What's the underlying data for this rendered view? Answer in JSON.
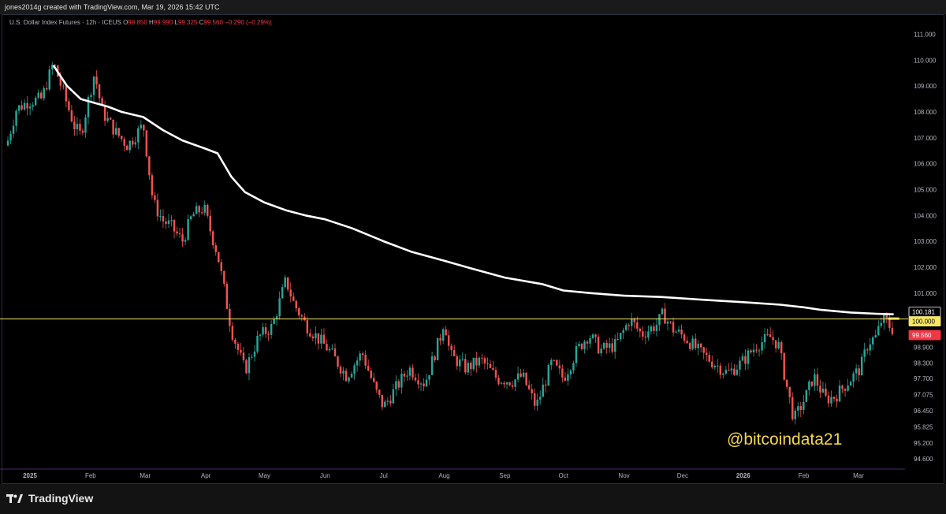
{
  "header": {
    "attribution": "jones2014g created with TradingView.com, Mar 19, 2026 15:42 UTC"
  },
  "legend": {
    "symbol": "U.S. Dollar Index Futures · 12h · ICEUS",
    "open_label": "O",
    "open": "99.850",
    "high_label": "H",
    "high": "99.990",
    "low_label": "L",
    "low": "99.325",
    "close_label": "C",
    "close": "99.560",
    "change": "−0.290 (−0.29%)"
  },
  "watermark": "@bitcoindata21",
  "footer": {
    "brand": "TradingView"
  },
  "colors": {
    "up": "#26a69a",
    "down": "#ef5350",
    "ma": "#ffffff",
    "level": "#f5e663",
    "badge_red": "#f23645",
    "background": "#000000"
  },
  "chart_data": {
    "type": "candlestick",
    "y_axis_ticks": [
      "111.000",
      "110.000",
      "109.000",
      "108.000",
      "107.000",
      "106.000",
      "105.000",
      "104.000",
      "103.000",
      "102.000",
      "101.000",
      "98.900",
      "98.300",
      "97.700",
      "97.075",
      "96.450",
      "95.825",
      "95.200",
      "94.600"
    ],
    "ylim": [
      94.2,
      111.35
    ],
    "x_axis_ticks": [
      "2025",
      "Feb",
      "Mar",
      "Apr",
      "May",
      "Jun",
      "Jul",
      "Aug",
      "Sep",
      "Oct",
      "Nov",
      "Dec",
      "2026",
      "Feb",
      "Mar"
    ],
    "price_labels": [
      {
        "label": "100.181",
        "value": 100.181,
        "kind": "ma"
      },
      {
        "label": "100.000",
        "value": 100.0,
        "kind": "level"
      },
      {
        "label": "99.560",
        "value": 99.56,
        "kind": "last"
      }
    ],
    "horizontal_level": 100.0,
    "price_path": [
      [
        "2024-12-20",
        106.7
      ],
      [
        "2024-12-25",
        108.1
      ],
      [
        "2024-12-31",
        108.4
      ],
      [
        "2025-01-07",
        108.5
      ],
      [
        "2025-01-13",
        109.9
      ],
      [
        "2025-01-20",
        108.3
      ],
      [
        "2025-01-24",
        107.4
      ],
      [
        "2025-01-27",
        107.1
      ],
      [
        "2025-01-31",
        108.5
      ],
      [
        "2025-02-03",
        109.5
      ],
      [
        "2025-02-07",
        108.0
      ],
      [
        "2025-02-14",
        107.2
      ],
      [
        "2025-02-20",
        106.7
      ],
      [
        "2025-02-28",
        107.5
      ],
      [
        "2025-03-05",
        104.5
      ],
      [
        "2025-03-10",
        103.8
      ],
      [
        "2025-03-14",
        103.6
      ],
      [
        "2025-03-20",
        103.0
      ],
      [
        "2025-03-25",
        104.0
      ],
      [
        "2025-03-31",
        104.3
      ],
      [
        "2025-04-03",
        103.5
      ],
      [
        "2025-04-07",
        102.5
      ],
      [
        "2025-04-10",
        101.3
      ],
      [
        "2025-04-14",
        99.6
      ],
      [
        "2025-04-21",
        98.0
      ],
      [
        "2025-04-28",
        99.3
      ],
      [
        "2025-05-05",
        99.7
      ],
      [
        "2025-05-12",
        101.5
      ],
      [
        "2025-05-16",
        100.6
      ],
      [
        "2025-05-22",
        99.8
      ],
      [
        "2025-05-29",
        99.2
      ],
      [
        "2025-06-03",
        98.8
      ],
      [
        "2025-06-12",
        97.8
      ],
      [
        "2025-06-20",
        98.7
      ],
      [
        "2025-06-27",
        97.2
      ],
      [
        "2025-07-01",
        96.6
      ],
      [
        "2025-07-07",
        97.3
      ],
      [
        "2025-07-14",
        98.1
      ],
      [
        "2025-07-22",
        97.5
      ],
      [
        "2025-07-30",
        99.3
      ],
      [
        "2025-08-01",
        100.0
      ],
      [
        "2025-08-04",
        98.6
      ],
      [
        "2025-08-12",
        98.1
      ],
      [
        "2025-08-20",
        98.4
      ],
      [
        "2025-08-28",
        97.7
      ],
      [
        "2025-09-05",
        97.6
      ],
      [
        "2025-09-10",
        97.8
      ],
      [
        "2025-09-17",
        96.6
      ],
      [
        "2025-09-25",
        98.3
      ],
      [
        "2025-10-01",
        97.7
      ],
      [
        "2025-10-08",
        98.8
      ],
      [
        "2025-10-14",
        99.4
      ],
      [
        "2025-10-20",
        98.8
      ],
      [
        "2025-10-28",
        99.0
      ],
      [
        "2025-11-04",
        100.0
      ],
      [
        "2025-11-10",
        99.4
      ],
      [
        "2025-11-18",
        99.8
      ],
      [
        "2025-11-21",
        100.2
      ],
      [
        "2025-11-26",
        99.6
      ],
      [
        "2025-12-02",
        99.3
      ],
      [
        "2025-12-10",
        98.7
      ],
      [
        "2025-12-17",
        98.3
      ],
      [
        "2025-12-24",
        97.9
      ],
      [
        "2025-12-31",
        98.3
      ],
      [
        "2026-01-08",
        99.0
      ],
      [
        "2026-01-15",
        99.3
      ],
      [
        "2026-01-19",
        99.0
      ],
      [
        "2026-01-23",
        97.5
      ],
      [
        "2026-01-27",
        96.1
      ],
      [
        "2026-02-02",
        97.0
      ],
      [
        "2026-02-06",
        97.8
      ],
      [
        "2026-02-12",
        96.9
      ],
      [
        "2026-02-17",
        97.0
      ],
      [
        "2026-02-24",
        97.6
      ],
      [
        "2026-03-02",
        98.1
      ],
      [
        "2026-03-06",
        99.1
      ],
      [
        "2026-03-10",
        99.3
      ],
      [
        "2026-03-13",
        100.0
      ],
      [
        "2026-03-16",
        99.8
      ],
      [
        "2026-03-19",
        99.56
      ]
    ],
    "ma_path": [
      [
        "2025-01-13",
        109.8
      ],
      [
        "2025-01-20",
        109.0
      ],
      [
        "2025-01-27",
        108.5
      ],
      [
        "2025-02-03",
        108.35
      ],
      [
        "2025-02-10",
        108.2
      ],
      [
        "2025-02-17",
        108.0
      ],
      [
        "2025-02-28",
        107.8
      ],
      [
        "2025-03-10",
        107.3
      ],
      [
        "2025-03-20",
        106.9
      ],
      [
        "2025-03-31",
        106.6
      ],
      [
        "2025-04-07",
        106.4
      ],
      [
        "2025-04-14",
        105.5
      ],
      [
        "2025-04-21",
        104.9
      ],
      [
        "2025-05-01",
        104.5
      ],
      [
        "2025-05-12",
        104.2
      ],
      [
        "2025-05-22",
        104.0
      ],
      [
        "2025-06-01",
        103.85
      ],
      [
        "2025-06-15",
        103.5
      ],
      [
        "2025-07-01",
        103.0
      ],
      [
        "2025-07-15",
        102.6
      ],
      [
        "2025-08-01",
        102.25
      ],
      [
        "2025-08-15",
        101.95
      ],
      [
        "2025-09-01",
        101.6
      ],
      [
        "2025-09-20",
        101.35
      ],
      [
        "2025-10-01",
        101.1
      ],
      [
        "2025-10-15",
        101.0
      ],
      [
        "2025-11-01",
        100.9
      ],
      [
        "2025-11-20",
        100.85
      ],
      [
        "2025-12-10",
        100.75
      ],
      [
        "2026-01-01",
        100.65
      ],
      [
        "2026-01-20",
        100.55
      ],
      [
        "2026-02-01",
        100.45
      ],
      [
        "2026-02-10",
        100.35
      ],
      [
        "2026-02-25",
        100.25
      ],
      [
        "2026-03-10",
        100.2
      ],
      [
        "2026-03-19",
        100.181
      ]
    ]
  }
}
